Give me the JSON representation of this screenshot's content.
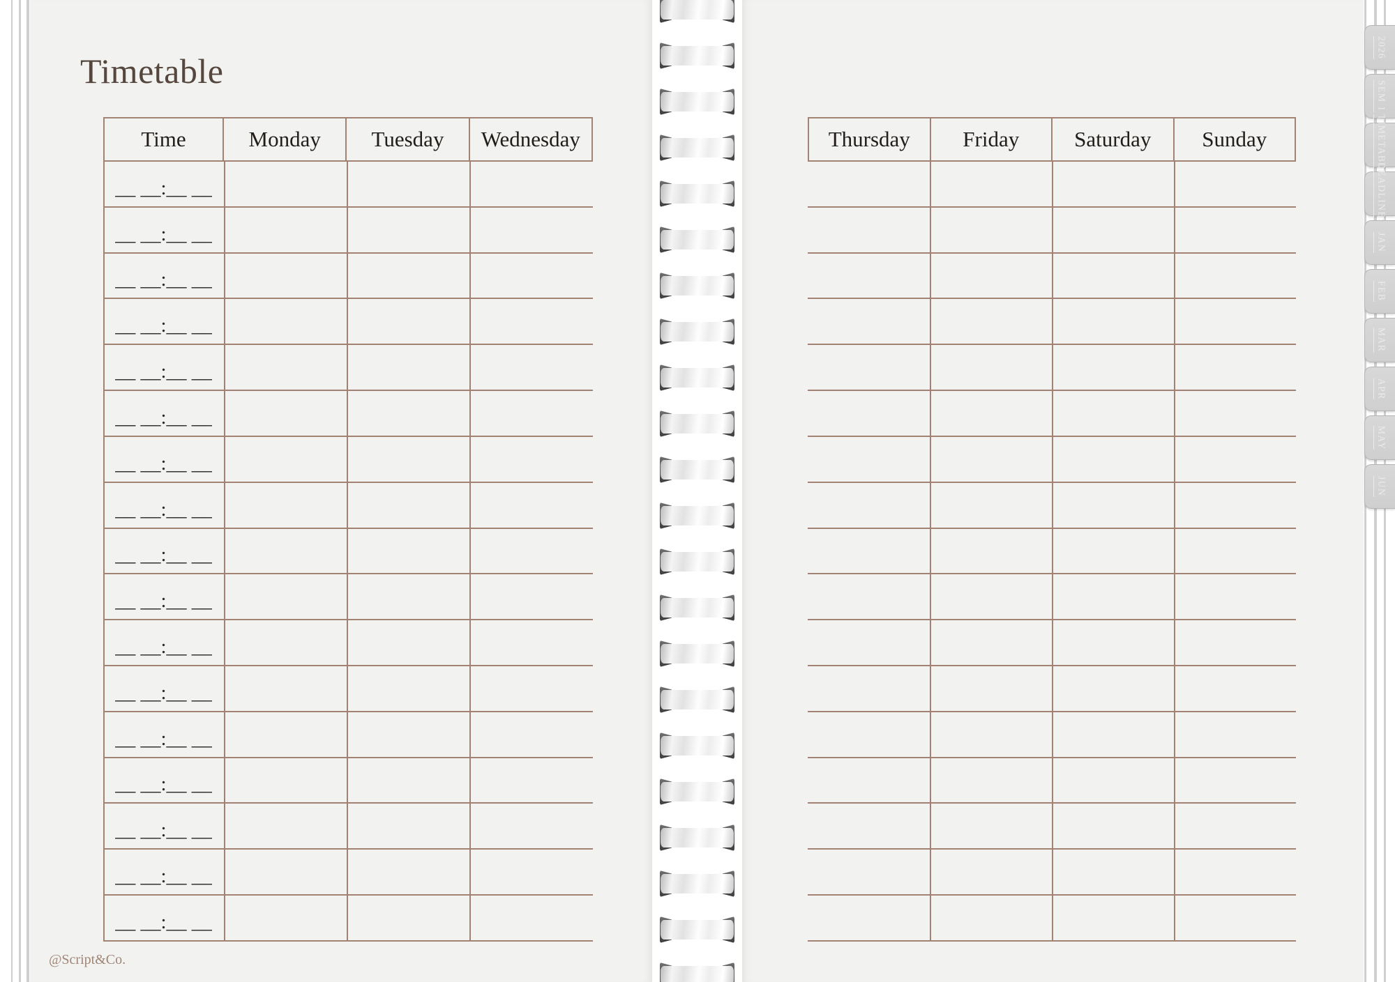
{
  "page": {
    "title": "Timetable",
    "footer_credit": "@Script&Co."
  },
  "timetable_left": {
    "headers": [
      "Time",
      "Monday",
      "Tuesday",
      "Wednesday"
    ],
    "row_count": 17,
    "time_placeholder": "__ __:__ __"
  },
  "timetable_right": {
    "headers": [
      "Thursday",
      "Friday",
      "Saturday",
      "Sunday"
    ],
    "row_count": 17
  },
  "side_tabs": {
    "labels": [
      "2026",
      "SEM 1",
      "TIMETABLE",
      "DEADLINES",
      "JAN",
      "FEB",
      "MAR",
      "APR",
      "MAY",
      "JUN"
    ]
  },
  "binding": {
    "ring_count": 22
  },
  "colors": {
    "page_bg": "#f2f2f0",
    "table_line": "#a28273",
    "title_text": "#55473e",
    "header_text": "#211d1a",
    "placeholder_text": "#2a2a2a",
    "footer_text": "#a18577",
    "tab_bg": "#cfcfcf",
    "tab_text": "#ececec",
    "edge_line": "#cfcfcf"
  }
}
